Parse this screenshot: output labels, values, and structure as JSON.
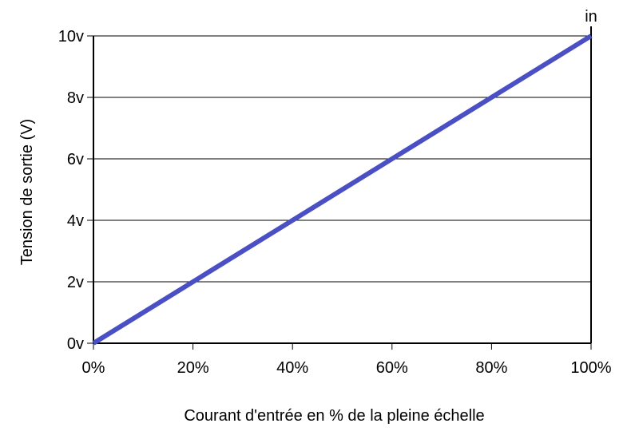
{
  "chart_data": {
    "type": "line",
    "title": "",
    "xlabel": "Courant d'entrée en % de la pleine échelle",
    "ylabel": "Tension de sortie (V)",
    "xlim": [
      0,
      100
    ],
    "ylim": [
      0,
      10
    ],
    "x_ticks": [
      0,
      20,
      40,
      60,
      80,
      100
    ],
    "x_tick_labels": [
      "0%",
      "20%",
      "40%",
      "60%",
      "80%",
      "100%"
    ],
    "y_ticks": [
      0,
      2,
      4,
      6,
      8,
      10
    ],
    "y_tick_labels": [
      "0v",
      "2v",
      "4v",
      "6v",
      "8v",
      "10v"
    ],
    "grid": "horizontal",
    "corner_label": "in",
    "series": [
      {
        "x": [
          0,
          100
        ],
        "values": [
          0,
          10
        ],
        "color": "#4a4fc4"
      }
    ]
  }
}
